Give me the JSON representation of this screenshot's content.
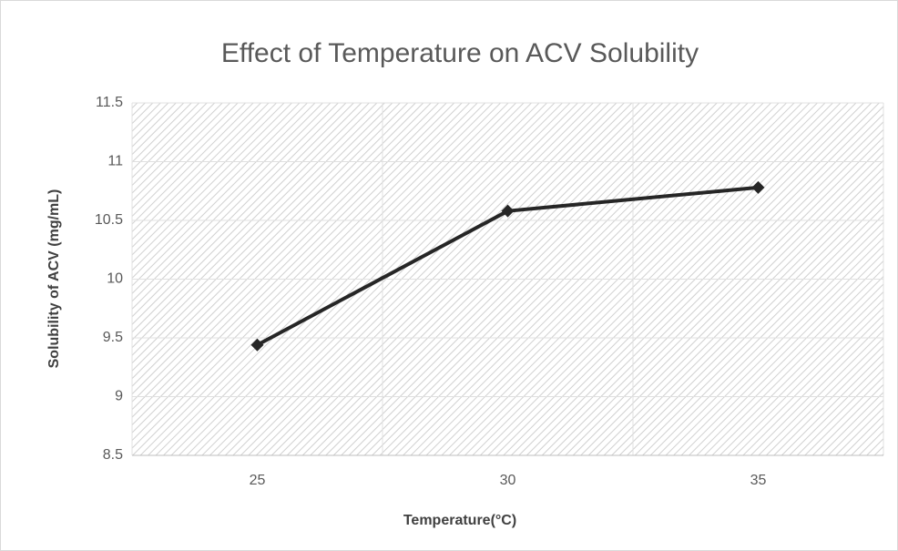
{
  "chart_data": {
    "type": "line",
    "title": "Effect of Temperature on ACV Solubility",
    "x_label": "Temperature(°C)",
    "y_label": "Solubility of ACV (mg/mL)",
    "categories": [
      "25",
      "30",
      "35"
    ],
    "series": [
      {
        "name": "Solubility",
        "color": "#262626",
        "values": [
          9.44,
          10.58,
          10.78
        ]
      }
    ],
    "ylim": [
      8.5,
      11.5
    ],
    "yticks": [
      8.5,
      9,
      9.5,
      10,
      10.5,
      11,
      11.5
    ],
    "grid": true
  }
}
